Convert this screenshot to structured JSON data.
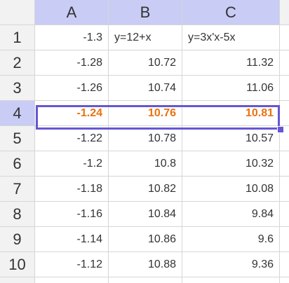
{
  "columns": [
    "A",
    "B",
    "C"
  ],
  "rows": [
    {
      "n": "1",
      "a": "-1.3",
      "b": "y=12+x",
      "c": "y=3x'x-5x"
    },
    {
      "n": "2",
      "a": "-1.28",
      "b": "10.72",
      "c": "11.32"
    },
    {
      "n": "3",
      "a": "-1.26",
      "b": "10.74",
      "c": "11.06"
    },
    {
      "n": "4",
      "a": "-1.24",
      "b": "10.76",
      "c": "10.81"
    },
    {
      "n": "5",
      "a": "-1.22",
      "b": "10.78",
      "c": "10.57"
    },
    {
      "n": "6",
      "a": "-1.2",
      "b": "10.8",
      "c": "10.32"
    },
    {
      "n": "7",
      "a": "-1.18",
      "b": "10.82",
      "c": "10.08"
    },
    {
      "n": "8",
      "a": "-1.16",
      "b": "10.84",
      "c": "9.84"
    },
    {
      "n": "9",
      "a": "-1.14",
      "b": "10.86",
      "c": "9.6"
    },
    {
      "n": "10",
      "a": "-1.12",
      "b": "10.88",
      "c": "9.36"
    }
  ],
  "selected_row": "4",
  "colors": {
    "header_active": "#c9ccf5",
    "selection_border": "#6557d2",
    "selected_text": "#e8730f"
  }
}
